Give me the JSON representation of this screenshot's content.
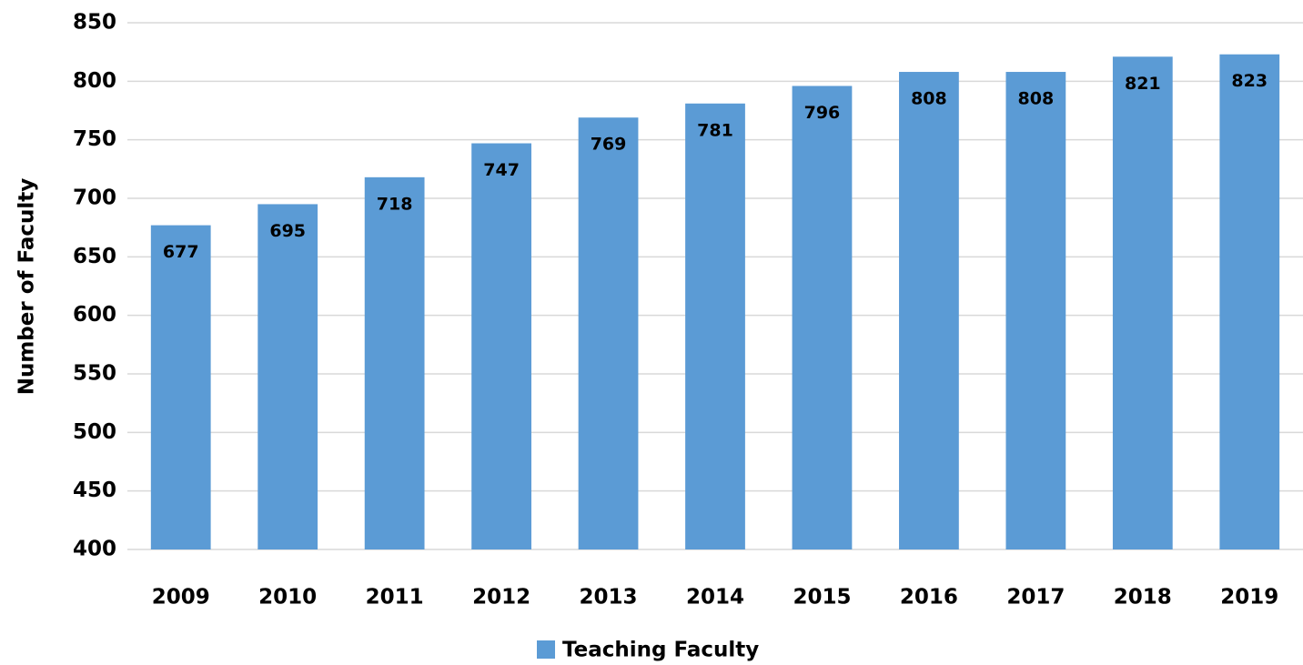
{
  "chart_data": {
    "type": "bar",
    "y_label": "Number of Faculty",
    "categories": [
      "2009",
      "2010",
      "2011",
      "2012",
      "2013",
      "2014",
      "2015",
      "2016",
      "2017",
      "2018",
      "2019"
    ],
    "series": [
      {
        "name": "Teaching Faculty",
        "color": "#5b9bd5",
        "values": [
          677,
          695,
          718,
          747,
          769,
          781,
          796,
          808,
          808,
          821,
          823
        ]
      }
    ],
    "ylim": [
      400,
      850
    ],
    "yticks": [
      400,
      450,
      500,
      550,
      600,
      650,
      700,
      750,
      800,
      850
    ],
    "grid": true,
    "legend": "bottom",
    "data_labels": true
  }
}
